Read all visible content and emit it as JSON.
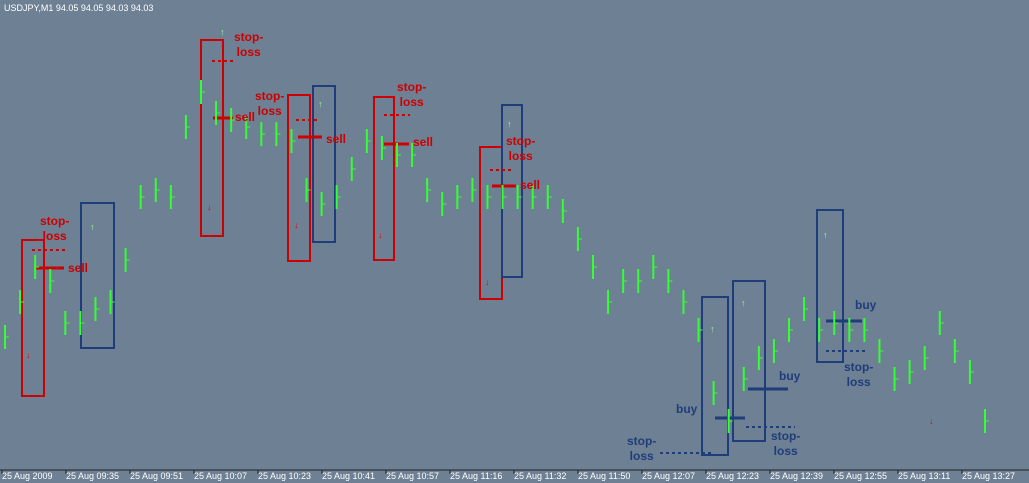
{
  "chart_data": {
    "type": "bar-line",
    "title": "USDJPY,M1  94.05 94.05 94.03 94.03",
    "color": "#33ff33",
    "ylim": [
      93.6,
      94.25
    ],
    "values": [
      93.79,
      93.84,
      93.89,
      93.87,
      93.81,
      93.81,
      93.83,
      93.84,
      93.9,
      93.99,
      94.0,
      93.99,
      94.09,
      94.14,
      94.11,
      94.1,
      94.09,
      94.08,
      94.08,
      94.07,
      94.0,
      93.98,
      93.99,
      94.03,
      94.07,
      94.06,
      94.05,
      94.05,
      94.0,
      93.98,
      93.99,
      94.0,
      93.99,
      93.99,
      93.99,
      93.99,
      93.99,
      93.97,
      93.93,
      93.89,
      93.84,
      93.87,
      93.87,
      93.89,
      93.87,
      93.84,
      93.8,
      93.71,
      93.67,
      93.73,
      93.76,
      93.77,
      93.8,
      93.83,
      93.8,
      93.81,
      93.8,
      93.8,
      93.77,
      93.73,
      93.74,
      93.76,
      93.81,
      93.77,
      93.74,
      93.67
    ],
    "xticks": [
      "25 Aug 2009",
      "25 Aug 09:35",
      "25 Aug 09:51",
      "25 Aug 10:07",
      "25 Aug 10:23",
      "25 Aug 10:41",
      "25 Aug 10:57",
      "25 Aug 11:16",
      "25 Aug 11:32",
      "25 Aug 11:50",
      "25 Aug 12:07",
      "25 Aug 12:23",
      "25 Aug 12:39",
      "25 Aug 12:55",
      "25 Aug 13:11",
      "25 Aug 13:27"
    ],
    "annotations": [
      "stop-\nloss",
      "sell",
      "stop-\nloss",
      "sell",
      "stop-\nloss",
      "sell",
      "stop-\nloss",
      "sell",
      "stop-\nloss",
      "sell",
      "buy",
      "stop-\nloss",
      "buy",
      "stop-\nloss",
      "buy",
      "stop-\nloss"
    ]
  }
}
